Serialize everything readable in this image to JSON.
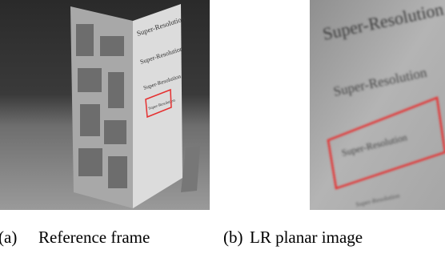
{
  "figure": {
    "panels": [
      {
        "label": "(a)",
        "caption": "Reference frame",
        "image_texts": [
          "Super-Resolution",
          "Super-Resolution",
          "Super-Resolution",
          "Super-Resolution"
        ]
      },
      {
        "label": "(b)",
        "caption": "LR planar image",
        "image_texts": [
          "Super-Resolution",
          "Super-Resolution",
          "Super-Resolution",
          "Super-Resolution"
        ]
      }
    ]
  }
}
